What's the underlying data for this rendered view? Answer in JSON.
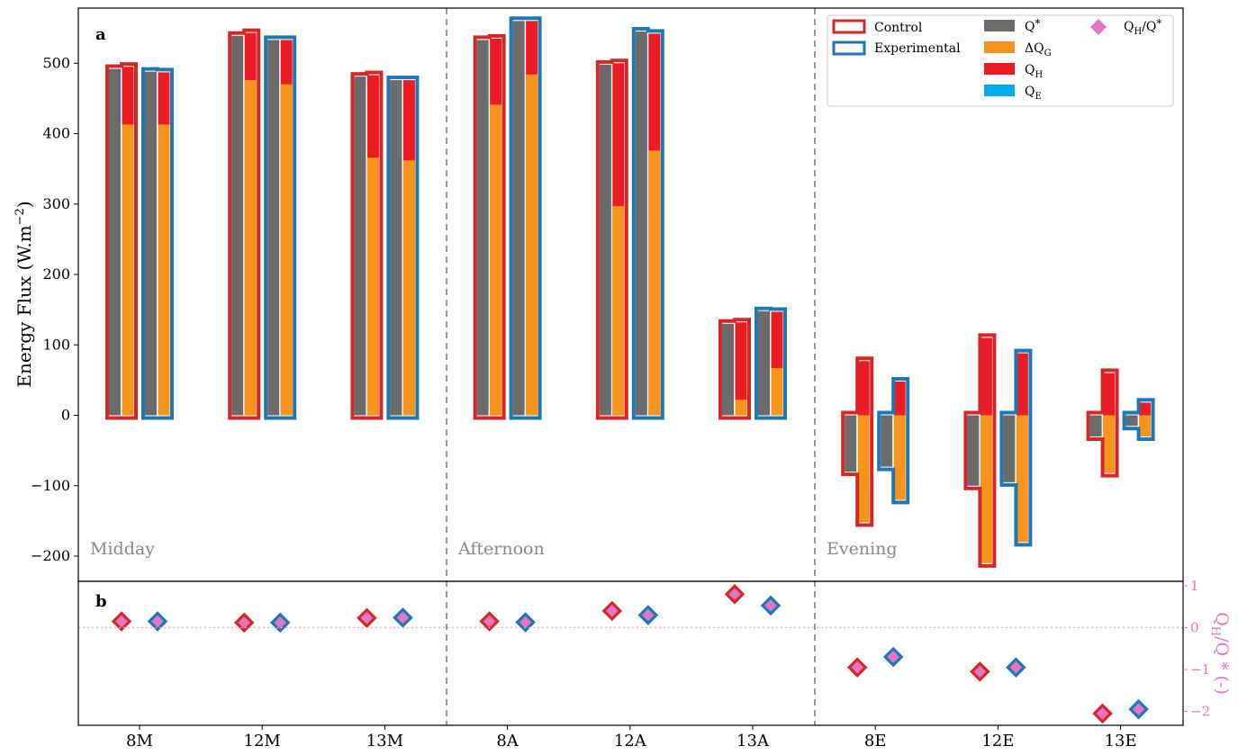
{
  "colors": {
    "control": "#d62728",
    "experimental": "#1f77b4",
    "qstar": "#6b6b6b",
    "dqg": "#f7941d",
    "qh": "#ed1c24",
    "qe": "#00aeef",
    "ratio": "#e377c2",
    "period_text": "#888888"
  },
  "chart_data": [
    {
      "panel": "a",
      "type": "bar",
      "ylabel": "Energy Flux (W.m",
      "ylabel_sup": "−2",
      "ylabel_close": ")",
      "ylim": [
        -235,
        570
      ],
      "yticks": [
        -200,
        -100,
        0,
        100,
        200,
        300,
        400,
        500
      ],
      "ytick_labels": [
        "−200",
        "−100",
        "0",
        "100",
        "200",
        "300",
        "400",
        "500"
      ],
      "categories": [
        "8M",
        "12M",
        "13M",
        "8A",
        "12A",
        "13A",
        "8E",
        "12E",
        "13E"
      ],
      "periods": [
        "Midday",
        "Afternoon",
        "Evening"
      ],
      "legend": {
        "control": "Control",
        "experimental": "Experimental",
        "qstar_main": "Q",
        "qstar_sup": "*",
        "dqg_main": "ΔQ",
        "dqg_sub": "G",
        "qh_main": "Q",
        "qh_sub": "H",
        "qe_main": "Q",
        "qe_sub": "E",
        "ratio_a": "Q",
        "ratio_a_sub": "H",
        "ratio_b": "/Q",
        "ratio_b_sup": "*"
      },
      "series": [
        {
          "site": "control",
          "qstar": [
            492,
            539,
            481,
            533,
            498,
            130,
            -80,
            -100,
            -30
          ],
          "dqg": [
            413,
            476,
            366,
            441,
            297,
            22,
            -152,
            -210,
            -82
          ],
          "qh": [
            495,
            543,
            483,
            535,
            500,
            132,
            77,
            110,
            60
          ]
        },
        {
          "site": "experimental",
          "qstar": [
            488,
            533,
            476,
            560,
            545,
            148,
            -73,
            -95,
            -15
          ],
          "dqg": [
            413,
            470,
            362,
            484,
            376,
            67,
            -120,
            -180,
            -30
          ],
          "qh": [
            487,
            533,
            476,
            560,
            542,
            147,
            48,
            88,
            18
          ]
        }
      ]
    },
    {
      "panel": "b",
      "type": "scatter",
      "ylabel": "Q",
      "ylabel_sub": "H",
      "ylabel_rest": "/Q * (-)",
      "ylim": [
        -2.3,
        1.05
      ],
      "yticks": [
        -2,
        -1,
        0,
        1
      ],
      "ytick_labels": [
        "−2",
        "−1",
        "0",
        "1"
      ],
      "series": [
        {
          "site": "control",
          "values": [
            0.15,
            0.12,
            0.23,
            0.15,
            0.4,
            0.8,
            -0.95,
            -1.05,
            -2.05
          ]
        },
        {
          "site": "experimental",
          "values": [
            0.15,
            0.12,
            0.24,
            0.13,
            0.3,
            0.53,
            -0.7,
            -0.95,
            -1.95
          ]
        }
      ]
    }
  ]
}
